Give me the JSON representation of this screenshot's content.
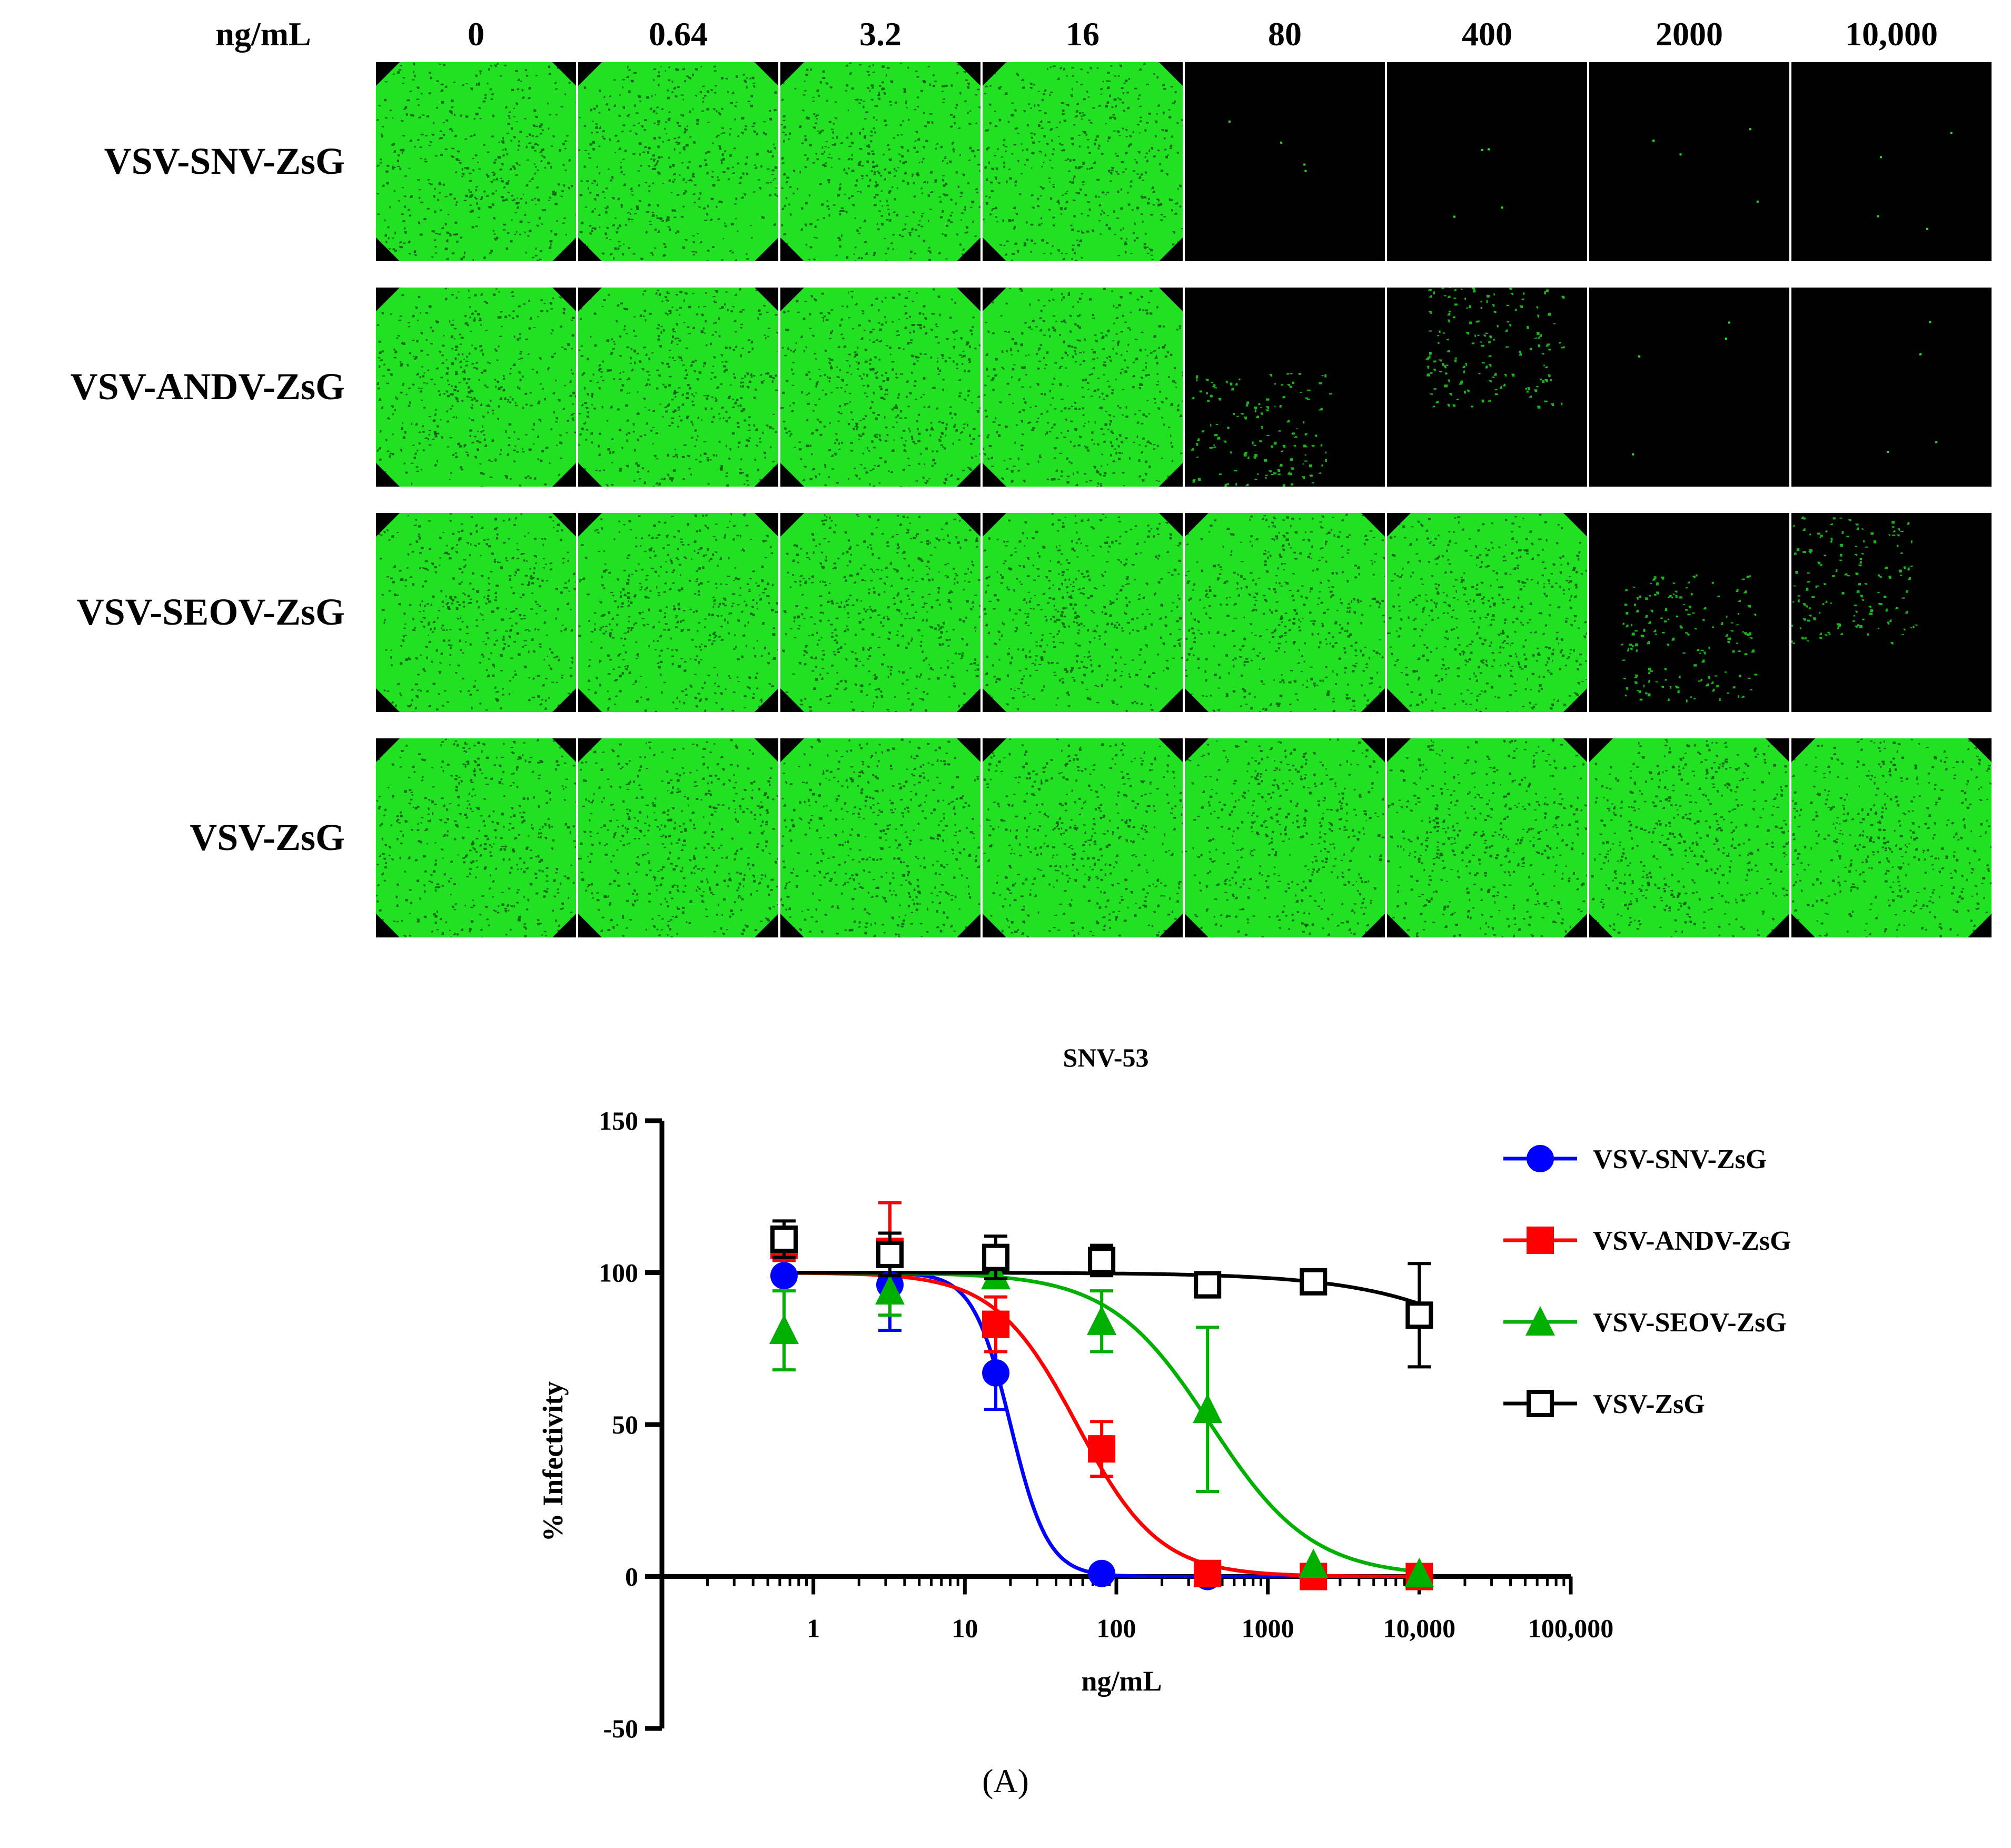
{
  "panel_caption": "(A)",
  "image_grid": {
    "unit_label": "ng/mL",
    "concentrations": [
      "0",
      "0.64",
      "3.2",
      "16",
      "80",
      "400",
      "2000",
      "10,000"
    ],
    "rows": [
      {
        "label": "VSV-SNV-ZsG",
        "well_signal": [
          "high",
          "high",
          "high",
          "high",
          "none",
          "none",
          "none",
          "none"
        ]
      },
      {
        "label": "VSV-ANDV-ZsG",
        "well_signal": [
          "high",
          "high",
          "high",
          "high",
          "low",
          "low",
          "none",
          "none"
        ]
      },
      {
        "label": "VSV-SEOV-ZsG",
        "well_signal": [
          "high",
          "high",
          "high",
          "high",
          "high",
          "high",
          "low",
          "low"
        ]
      },
      {
        "label": "VSV-ZsG",
        "well_signal": [
          "high",
          "high",
          "high",
          "high",
          "high",
          "high",
          "high",
          "high"
        ]
      }
    ],
    "colors": {
      "fluorescence": "#22e022",
      "background": "#000000"
    }
  },
  "chart_data": {
    "type": "line",
    "title": "SNV-53",
    "xlabel": "ng/mL",
    "ylabel": "% Infectivity",
    "xscale": "log",
    "xlim": [
      0.1,
      100000
    ],
    "ylim": [
      -50,
      150
    ],
    "xticks": [
      1,
      10,
      100,
      1000,
      10000,
      100000
    ],
    "xtick_labels": [
      "1",
      "10",
      "100",
      "1000",
      "10,000",
      "100,000"
    ],
    "yticks": [
      -50,
      0,
      50,
      100,
      150
    ],
    "ytick_labels": [
      "-50",
      "0",
      "50",
      "100",
      "150"
    ],
    "legend_position": "top-right",
    "series": [
      {
        "name": "VSV-SNV-ZsG",
        "color": "#0000ff",
        "marker": "circle",
        "x": [
          0.64,
          3.2,
          16,
          80,
          400,
          2000,
          10000
        ],
        "y": [
          99,
          96,
          67,
          1,
          0,
          0,
          0
        ],
        "err": [
          0,
          15,
          12,
          0,
          0,
          0,
          0
        ],
        "fit": {
          "top": 100,
          "bottom": 0,
          "ec50": 20,
          "hill": 3.5
        }
      },
      {
        "name": "VSV-ANDV-ZsG",
        "color": "#ff0000",
        "marker": "square",
        "x": [
          0.64,
          3.2,
          16,
          80,
          400,
          2000,
          10000
        ],
        "y": [
          109,
          107,
          83,
          42,
          1,
          0,
          0
        ],
        "err": [
          5,
          16,
          9,
          9,
          0,
          0,
          0
        ],
        "fit": {
          "top": 100,
          "bottom": 0,
          "ec50": 55,
          "hill": 1.6
        }
      },
      {
        "name": "VSV-SEOV-ZsG",
        "color": "#00b000",
        "marker": "triangle",
        "x": [
          0.64,
          3.2,
          16,
          80,
          400,
          2000,
          10000
        ],
        "y": [
          81,
          94,
          99,
          84,
          55,
          4,
          1
        ],
        "err": [
          13,
          8,
          0,
          10,
          27,
          0,
          0
        ],
        "fit": {
          "top": 100,
          "bottom": 0,
          "ec50": 420,
          "hill": 1.3
        }
      },
      {
        "name": "VSV-ZsG",
        "color": "#000000",
        "marker": "open-square",
        "x": [
          0.64,
          3.2,
          16,
          80,
          400,
          2000,
          10000
        ],
        "y": [
          111,
          106,
          105,
          104,
          96,
          97,
          86
        ],
        "err": [
          6,
          7,
          7,
          5,
          4,
          0,
          17
        ],
        "fit": {
          "top": 100,
          "bottom": 0,
          "ec50": 150000,
          "hill": 0.8
        }
      }
    ]
  }
}
